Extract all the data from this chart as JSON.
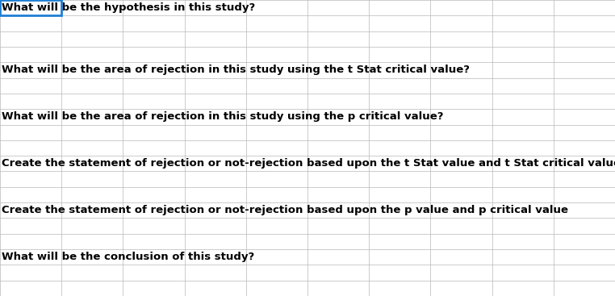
{
  "questions": [
    {
      "text": "What will be the hypothesis in this study?",
      "row": 0
    },
    {
      "text": "What will be the area of rejection in this study using the t Stat critical value?",
      "row": 4
    },
    {
      "text": "What will be the area of rejection in this study using the p critical value?",
      "row": 7
    },
    {
      "text": "Create the statement of rejection or not-rejection based upon the t Stat value and t Stat critical value",
      "row": 10
    },
    {
      "text": "Create the statement of rejection or not-rejection based upon the p value and p critical value",
      "row": 13
    },
    {
      "text": "What will be the conclusion of this study?",
      "row": 16
    }
  ],
  "num_cols": 10,
  "num_rows": 19,
  "bg_color": "#ffffff",
  "grid_color": "#b8b8b8",
  "text_color": "#000000",
  "first_cell_border_color": "#1f7fd4",
  "font_size": 9.5
}
